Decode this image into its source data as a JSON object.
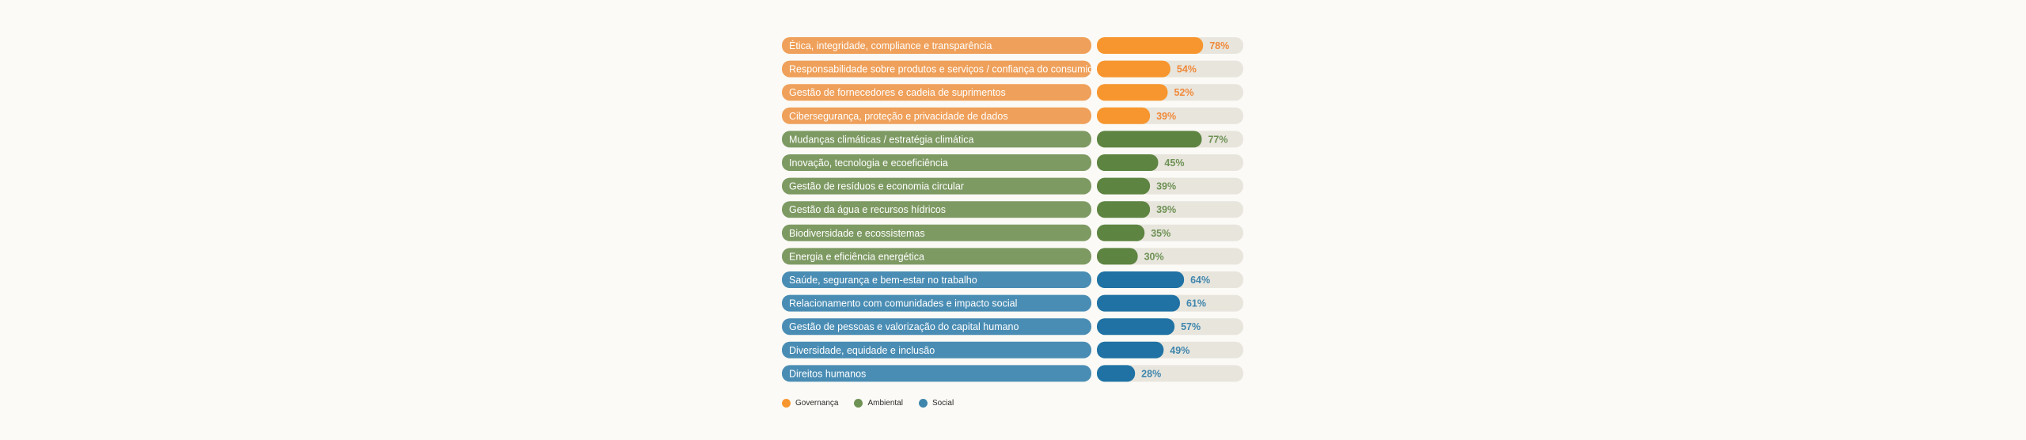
{
  "chart_data": {
    "type": "bar",
    "orientation": "horizontal",
    "value_unit": "%",
    "xlim": [
      0,
      100
    ],
    "colors": {
      "Governança": {
        "label_bg": "#efa05a",
        "bar": "#f7962e",
        "text": "#f08a3a"
      },
      "Ambiental": {
        "label_bg": "#7e9a63",
        "bar": "#5e8441",
        "text": "#6e9154"
      },
      "Social": {
        "label_bg": "#4a8db4",
        "bar": "#1f72a3",
        "text": "#3f86ad"
      },
      "track": "#e8e5dd"
    },
    "items": [
      {
        "label": "Ética, integridade, compliance e transparência",
        "value": 78,
        "display": "78%",
        "group": "Governança"
      },
      {
        "label": "Responsabilidade sobre produtos e serviços / confiança do consumidor",
        "value": 54,
        "display": "54%",
        "group": "Governança"
      },
      {
        "label": "Gestão de fornecedores e cadeia de suprimentos",
        "value": 52,
        "display": "52%",
        "group": "Governança"
      },
      {
        "label": "Cibersegurança, proteção e privacidade de dados",
        "value": 39,
        "display": "39%",
        "group": "Governança"
      },
      {
        "label": "Mudanças climáticas / estratégia climática",
        "value": 77,
        "display": "77%",
        "group": "Ambiental"
      },
      {
        "label": "Inovação, tecnologia e ecoeficiência",
        "value": 45,
        "display": "45%",
        "group": "Ambiental"
      },
      {
        "label": "Gestão de resíduos e economia circular",
        "value": 39,
        "display": "39%",
        "group": "Ambiental"
      },
      {
        "label": "Gestão da água e recursos hídricos",
        "value": 39,
        "display": "39%",
        "group": "Ambiental"
      },
      {
        "label": "Biodiversidade e ecossistemas",
        "value": 35,
        "display": "35%",
        "group": "Ambiental"
      },
      {
        "label": "Energia e eficiência energética",
        "value": 30,
        "display": "30%",
        "group": "Ambiental"
      },
      {
        "label": "Saúde, segurança e bem-estar no trabalho",
        "value": 64,
        "display": "64%",
        "group": "Social"
      },
      {
        "label": "Relacionamento com comunidades e impacto social",
        "value": 61,
        "display": "61%",
        "group": "Social"
      },
      {
        "label": "Gestão de pessoas e valorização do capital humano",
        "value": 57,
        "display": "57%",
        "group": "Social"
      },
      {
        "label": "Diversidade, equidade e inclusão",
        "value": 49,
        "display": "49%",
        "group": "Social"
      },
      {
        "label": "Direitos humanos",
        "value": 28,
        "display": "28%",
        "group": "Social"
      }
    ],
    "legend": {
      "placement": "bottom-left",
      "entries": [
        {
          "name": "Governança",
          "color": "#f7962e"
        },
        {
          "name": "Ambiental",
          "color": "#6e9154"
        },
        {
          "name": "Social",
          "color": "#3f86ad"
        }
      ]
    }
  }
}
